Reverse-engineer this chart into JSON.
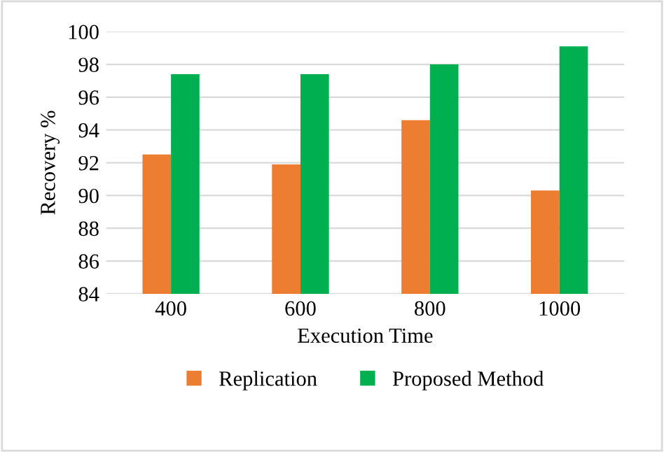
{
  "chart_data": {
    "type": "bar",
    "xlabel": "Execution Time",
    "ylabel": "Recovery %",
    "categories": [
      "400",
      "600",
      "800",
      "1000"
    ],
    "series": [
      {
        "name": "Replication",
        "color": "#ed7d31",
        "values": [
          92.5,
          91.9,
          94.6,
          90.3
        ]
      },
      {
        "name": "Proposed Method",
        "color": "#00b050",
        "values": [
          97.4,
          97.4,
          98.0,
          99.1
        ]
      }
    ],
    "ylim": [
      84,
      100
    ],
    "yticks": [
      84,
      86,
      88,
      90,
      92,
      94,
      96,
      98,
      100
    ],
    "grid": "y",
    "legend": "bottom"
  }
}
